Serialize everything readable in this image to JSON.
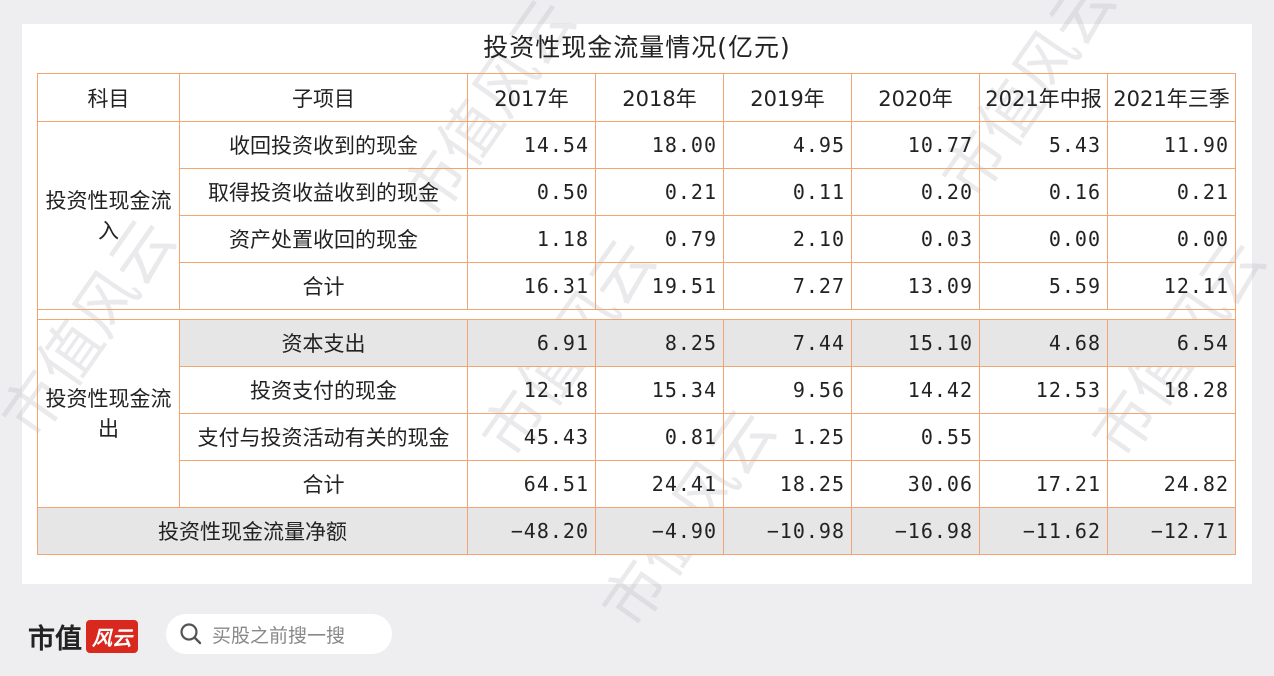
{
  "title": "投资性现金流量情况(亿元)",
  "headers": [
    "科目",
    "子项目",
    "2017年",
    "2018年",
    "2019年",
    "2020年",
    "2021年中报",
    "2021年三季"
  ],
  "inflow": {
    "group": "投资性现金流入",
    "rows": [
      {
        "label": "收回投资收到的现金",
        "values": [
          "14.54",
          "18.00",
          "4.95",
          "10.77",
          "5.43",
          "11.90"
        ]
      },
      {
        "label": "取得投资收益收到的现金",
        "values": [
          "0.50",
          "0.21",
          "0.11",
          "0.20",
          "0.16",
          "0.21"
        ]
      },
      {
        "label": "资产处置收回的现金",
        "values": [
          "1.18",
          "0.79",
          "2.10",
          "0.03",
          "0.00",
          "0.00"
        ]
      },
      {
        "label": "合计",
        "values": [
          "16.31",
          "19.51",
          "7.27",
          "13.09",
          "5.59",
          "12.11"
        ]
      }
    ]
  },
  "outflow": {
    "group": "投资性现金流出",
    "rows": [
      {
        "label": "资本支出",
        "values": [
          "6.91",
          "8.25",
          "7.44",
          "15.10",
          "4.68",
          "6.54"
        ]
      },
      {
        "label": "投资支付的现金",
        "values": [
          "12.18",
          "15.34",
          "9.56",
          "14.42",
          "12.53",
          "18.28"
        ]
      },
      {
        "label": "支付与投资活动有关的现金",
        "values": [
          "45.43",
          "0.81",
          "1.25",
          "0.55",
          "",
          ""
        ]
      },
      {
        "label": "合计",
        "values": [
          "64.51",
          "24.41",
          "18.25",
          "30.06",
          "17.21",
          "24.82"
        ]
      }
    ]
  },
  "net": {
    "label": "投资性现金流量净额",
    "values": [
      "−48.20",
      "−4.90",
      "−10.98",
      "−16.98",
      "−11.62",
      "−12.71"
    ]
  },
  "watermark": "市值风云",
  "footer": {
    "logo_text": "市值",
    "logo_seal": "风云",
    "search_placeholder": "买股之前搜一搜",
    "search_icon": "search-icon"
  }
}
